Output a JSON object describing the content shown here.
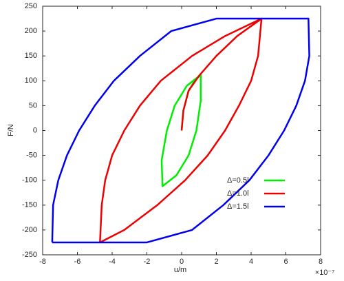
{
  "chart_data": {
    "type": "line",
    "xlabel": "u/m",
    "ylabel": "F/N",
    "x_multiplier": "×10⁻⁷",
    "xlim": [
      -8,
      8
    ],
    "xticks": [
      -8,
      -6,
      -4,
      -2,
      0,
      2,
      4,
      6,
      8
    ],
    "ylim": [
      -250,
      250
    ],
    "yticks": [
      -250,
      -200,
      -150,
      -100,
      -50,
      0,
      50,
      100,
      150,
      200,
      250
    ],
    "legend": "lower right",
    "series": [
      {
        "name": "Δ=0.5l",
        "color": "#00ee00",
        "x": [
          0,
          0.1,
          0.4,
          0.75,
          1.1,
          1.1,
          0.85,
          0.4,
          -0.3,
          -1.1,
          -1.15,
          -0.85,
          -0.4,
          0.3,
          1.1
        ],
        "values": [
          0,
          40,
          80,
          100,
          112,
          60,
          0,
          -50,
          -90,
          -112,
          -60,
          0,
          50,
          90,
          112
        ]
      },
      {
        "name": "Δ=1.0l",
        "color": "#ee0000",
        "x": [
          0,
          0.1,
          0.4,
          1,
          2,
          3.2,
          4.6,
          4.4,
          4.0,
          3.3,
          2.5,
          1.5,
          0.2,
          -1.4,
          -3.3,
          -4.7,
          -4.6,
          -4.4,
          -4.0,
          -3.3,
          -2.4,
          -1.2,
          0.6,
          2.5,
          4.6
        ],
        "values": [
          0,
          40,
          80,
          110,
          150,
          190,
          225,
          150,
          100,
          50,
          0,
          -50,
          -100,
          -150,
          -200,
          -225,
          -150,
          -100,
          -50,
          0,
          50,
          100,
          150,
          190,
          225
        ]
      },
      {
        "name": "Δ=1.5l",
        "color": "#0000ee",
        "x": [
          -7.45,
          -7.4,
          -7.1,
          -6.6,
          -5.9,
          -5.0,
          -3.9,
          -2.4,
          -0.6,
          2,
          7.3,
          7.35,
          7.1,
          6.6,
          5.9,
          5.0,
          3.9,
          2.4,
          0.6,
          -2,
          -7.45
        ],
        "values": [
          -225,
          -150,
          -100,
          -50,
          0,
          50,
          100,
          150,
          200,
          225,
          225,
          150,
          100,
          50,
          0,
          -50,
          -100,
          -150,
          -200,
          -225,
          -225
        ]
      }
    ]
  }
}
